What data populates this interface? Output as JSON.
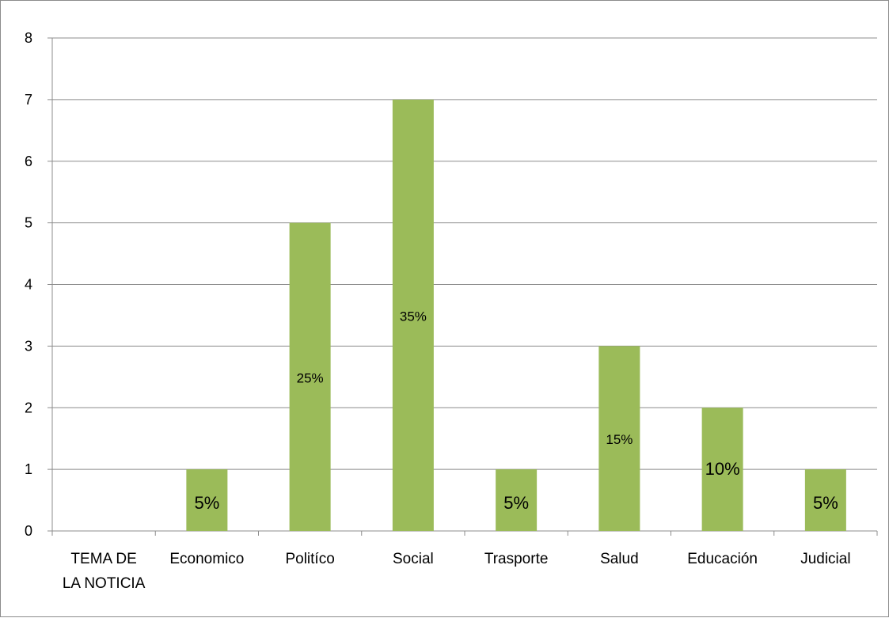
{
  "chart_data": {
    "type": "bar",
    "title": "",
    "xlabel": "",
    "ylabel": "",
    "ylim": [
      0,
      8
    ],
    "yticks": [
      "0",
      "1",
      "2",
      "3",
      "4",
      "5",
      "6",
      "7",
      "8"
    ],
    "grid": true,
    "legend": "none",
    "categories": [
      [
        "TEMA DE",
        "LA NOTICIA"
      ],
      [
        "Economico"
      ],
      [
        "Politíco"
      ],
      [
        "Social"
      ],
      [
        "Trasporte"
      ],
      [
        "Salud"
      ],
      [
        "Educación"
      ],
      [
        "Judicial"
      ]
    ],
    "values": [
      null,
      1,
      5,
      7,
      1,
      3,
      2,
      1
    ],
    "data_labels": [
      "",
      "5%",
      "25%",
      "35%",
      "5%",
      "15%",
      "10%",
      "5%"
    ],
    "bar_color": "#9bbb59"
  }
}
